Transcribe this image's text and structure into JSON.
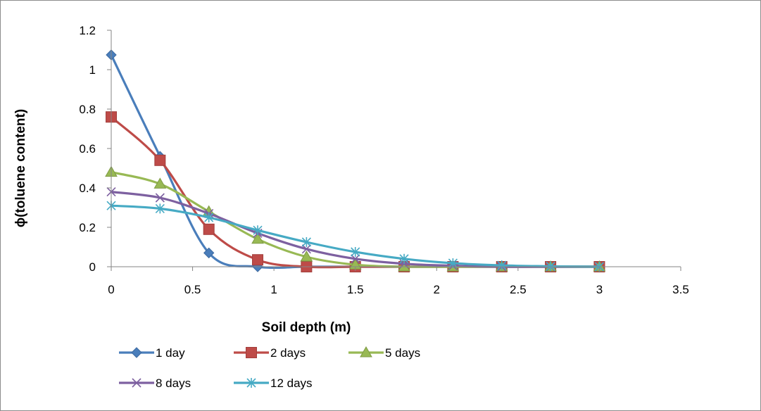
{
  "chart_data": {
    "type": "line",
    "xlabel": "Soil depth  (m)",
    "ylabel": "ϕ(toluene content)",
    "xlim": [
      0,
      3.5
    ],
    "ylim": [
      0,
      1.2
    ],
    "x_ticks": [
      "0",
      "0.5",
      "1",
      "1.5",
      "2",
      "2.5",
      "3",
      "3.5"
    ],
    "y_ticks": [
      "0",
      "0.2",
      "0.4",
      "0.6",
      "0.8",
      "1",
      "1.2"
    ],
    "grid": false,
    "smooth": true,
    "legend_position": "bottom",
    "x": [
      0,
      0.3,
      0.6,
      0.9,
      1.2,
      1.5,
      1.8,
      2.1,
      2.4,
      2.7,
      3.0
    ],
    "series": [
      {
        "name": "1 day",
        "color": "#4a7ebb",
        "marker": "diamond",
        "values": [
          1.075,
          0.56,
          0.07,
          0.0,
          0.0,
          0.0,
          0.0,
          0.0,
          0.0,
          0.0,
          0.0
        ]
      },
      {
        "name": "2 days",
        "color": "#be4b48",
        "marker": "square",
        "values": [
          0.76,
          0.54,
          0.19,
          0.035,
          0.0,
          0.0,
          0.0,
          0.0,
          0.0,
          0.0,
          0.0
        ]
      },
      {
        "name": "5 days",
        "color": "#98b954",
        "marker": "triangle",
        "values": [
          0.48,
          0.42,
          0.28,
          0.14,
          0.05,
          0.01,
          0.0,
          0.0,
          0.0,
          0.0,
          0.0
        ]
      },
      {
        "name": "8 days",
        "color": "#7d60a0",
        "marker": "x",
        "values": [
          0.38,
          0.35,
          0.27,
          0.17,
          0.09,
          0.04,
          0.015,
          0.005,
          0.0,
          0.0,
          0.0
        ]
      },
      {
        "name": "12 days",
        "color": "#46aac4",
        "marker": "star",
        "values": [
          0.31,
          0.295,
          0.25,
          0.185,
          0.125,
          0.075,
          0.04,
          0.018,
          0.007,
          0.002,
          0.0
        ]
      }
    ]
  }
}
